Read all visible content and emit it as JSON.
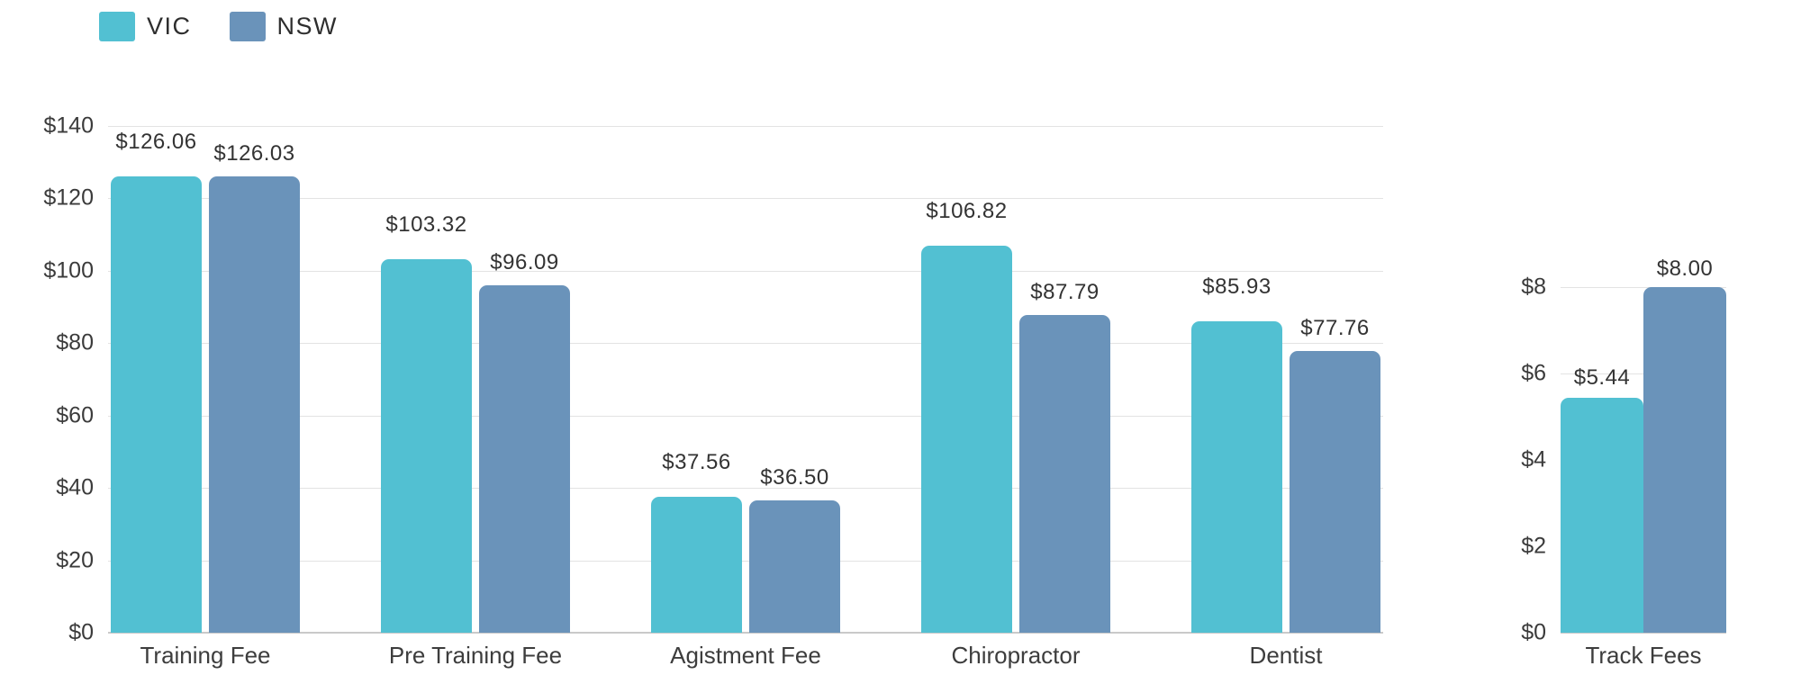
{
  "legend": {
    "items": [
      {
        "label": "VIC",
        "color": "#52c0d2"
      },
      {
        "label": "NSW",
        "color": "#6a93ba"
      }
    ]
  },
  "chart_data": [
    {
      "type": "bar",
      "title": "",
      "categories": [
        "Training Fee",
        "Pre Training Fee",
        "Agistment Fee",
        "Chiropractor",
        "Dentist"
      ],
      "series": [
        {
          "name": "VIC",
          "color": "#52c0d2",
          "values": [
            126.06,
            103.32,
            37.56,
            106.82,
            85.93
          ],
          "labels": [
            "$126.06",
            "$103.32",
            "$37.56",
            "$106.82",
            "$85.93"
          ]
        },
        {
          "name": "NSW",
          "color": "#6a93ba",
          "values": [
            126.03,
            96.09,
            36.5,
            87.79,
            77.76
          ],
          "labels": [
            "$126.03",
            "$96.09",
            "$36.50",
            "$87.79",
            "$77.76"
          ]
        }
      ],
      "ylim": [
        0,
        140
      ],
      "ytick_step": 20,
      "ytick_labels": [
        "$0",
        "$20",
        "$40",
        "$60",
        "$80",
        "$100",
        "$120",
        "$140"
      ],
      "grid": true,
      "legend_position": "top-left"
    },
    {
      "type": "bar",
      "title": "",
      "categories": [
        "Track Fees"
      ],
      "series": [
        {
          "name": "VIC",
          "color": "#52c0d2",
          "values": [
            5.44
          ],
          "labels": [
            "$5.44"
          ]
        },
        {
          "name": "NSW",
          "color": "#6a93ba",
          "values": [
            8.0
          ],
          "labels": [
            "$8.00"
          ]
        }
      ],
      "ylim": [
        0,
        8
      ],
      "ytick_step": 2,
      "ytick_labels": [
        "$0",
        "$2",
        "$4",
        "$6",
        "$8"
      ],
      "grid": true
    }
  ]
}
